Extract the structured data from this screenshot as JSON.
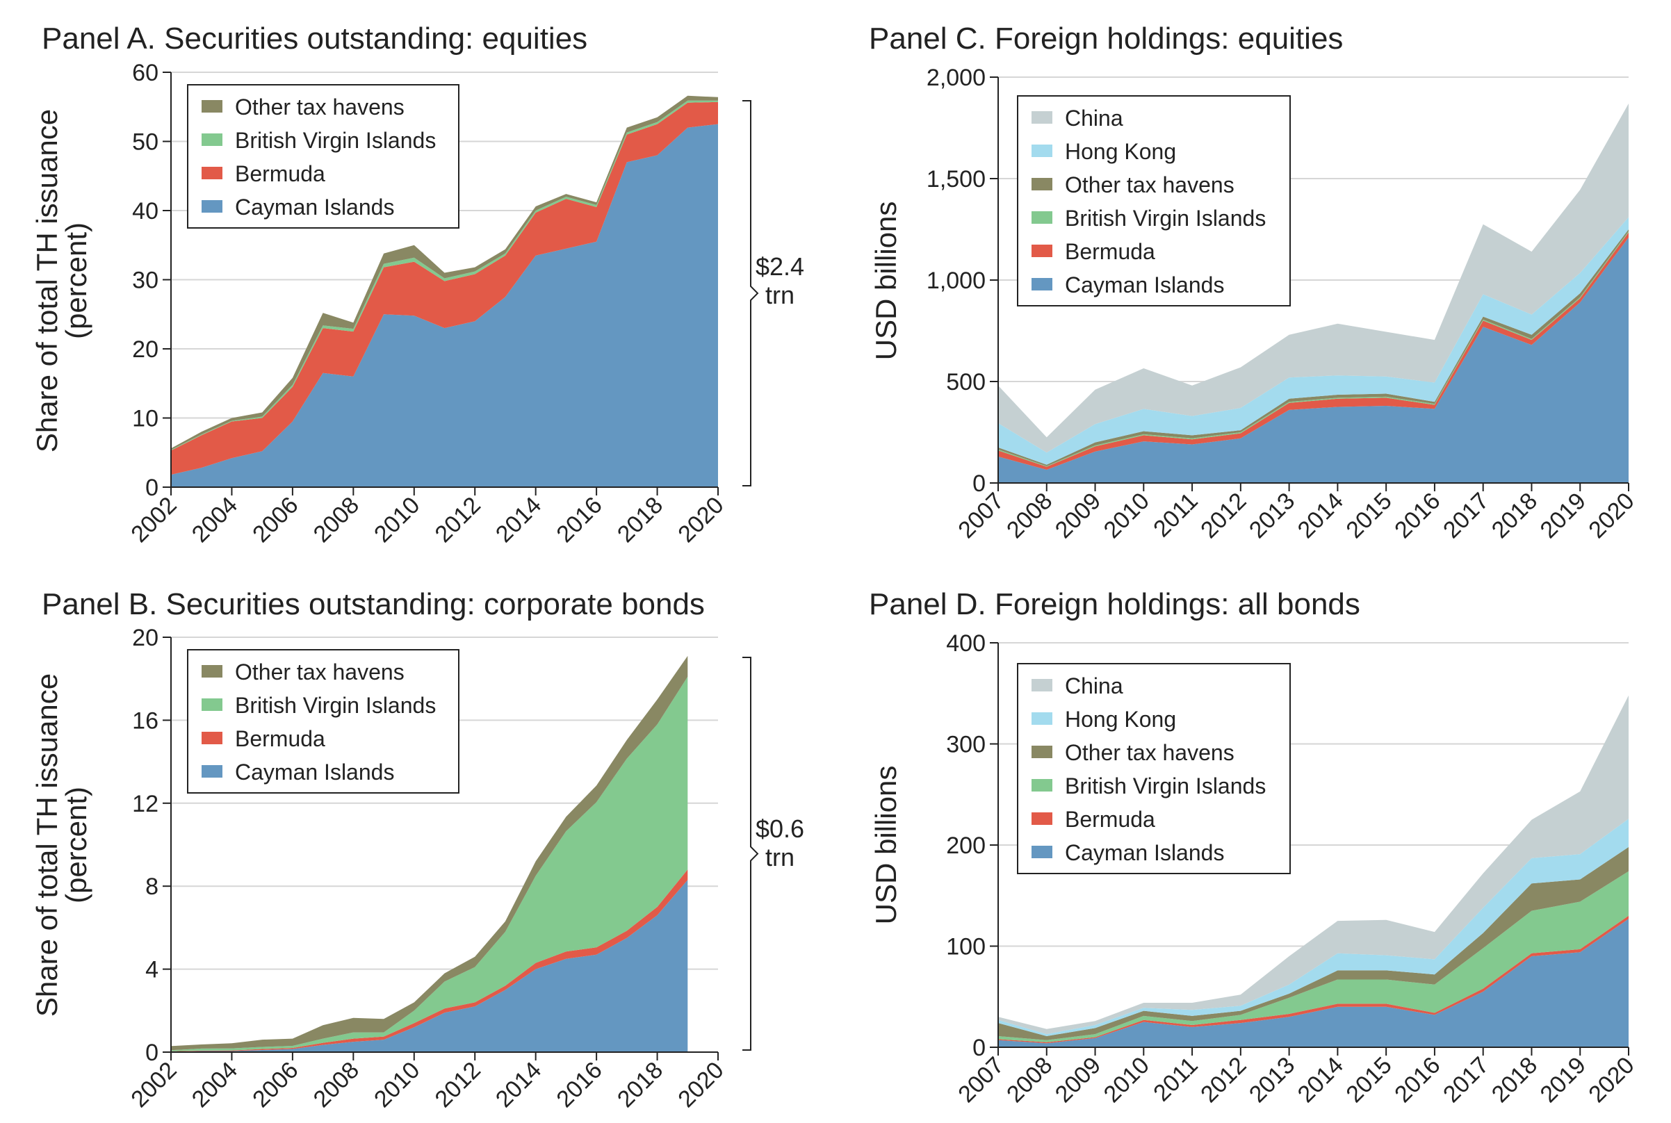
{
  "chart_data": [
    {
      "id": "A",
      "type": "area",
      "title": "Panel A. Securities outstanding: equities",
      "xlabel": "",
      "ylabel": [
        "Share of total TH issuance",
        "(percent)"
      ],
      "x": [
        2002,
        2003,
        2004,
        2005,
        2006,
        2007,
        2008,
        2009,
        2010,
        2011,
        2012,
        2013,
        2014,
        2015,
        2016,
        2017,
        2018,
        2019,
        2020
      ],
      "xticks": [
        "2002",
        "2004",
        "2006",
        "2008",
        "2010",
        "2012",
        "2014",
        "2016",
        "2018",
        "2020"
      ],
      "xlim": [
        2002,
        2020
      ],
      "ylim": [
        0,
        60
      ],
      "yticks": [
        "0",
        "10",
        "20",
        "30",
        "40",
        "50",
        "60"
      ],
      "grid": true,
      "legend_position": "top-left",
      "legend_order": [
        "Other tax havens",
        "British Virgin Islands",
        "Bermuda",
        "Cayman Islands"
      ],
      "series": [
        {
          "name": "Cayman Islands",
          "color": "#6497c1",
          "values": [
            1.8,
            2.8,
            4.2,
            5.2,
            9.5,
            16.5,
            16.0,
            25.0,
            24.8,
            23.0,
            24.0,
            27.5,
            33.5,
            34.5,
            35.5,
            47.0,
            48.0,
            52.0,
            52.5
          ]
        },
        {
          "name": "Bermuda",
          "color": "#e25a48",
          "values": [
            3.5,
            4.7,
            5.3,
            4.8,
            5.0,
            6.5,
            6.5,
            6.8,
            7.8,
            6.8,
            6.8,
            6.0,
            6.2,
            7.2,
            5.0,
            4.0,
            4.5,
            3.6,
            3.2
          ]
        },
        {
          "name": "British Virgin Islands",
          "color": "#83c98f",
          "values": [
            0.1,
            0.1,
            0.1,
            0.2,
            0.3,
            0.4,
            0.4,
            0.5,
            0.6,
            0.4,
            0.4,
            0.3,
            0.3,
            0.3,
            0.3,
            0.3,
            0.3,
            0.3,
            0.2
          ]
        },
        {
          "name": "Other tax havens",
          "color": "#898863",
          "values": [
            0.2,
            0.4,
            0.4,
            0.6,
            1.0,
            1.8,
            0.9,
            1.5,
            1.8,
            0.8,
            0.6,
            0.6,
            0.6,
            0.4,
            0.4,
            0.7,
            0.7,
            0.7,
            0.5
          ]
        }
      ],
      "annotation": [
        "$2.4",
        "trn"
      ]
    },
    {
      "id": "B",
      "type": "area",
      "title": "Panel B. Securities outstanding: corporate bonds",
      "xlabel": "",
      "ylabel": [
        "Share of total TH issuance",
        "(percent)"
      ],
      "x": [
        2002,
        2003,
        2004,
        2005,
        2006,
        2007,
        2008,
        2009,
        2010,
        2011,
        2012,
        2013,
        2014,
        2015,
        2016,
        2017,
        2018,
        2019
      ],
      "xticks": [
        "2002",
        "2004",
        "2006",
        "2008",
        "2010",
        "2012",
        "2014",
        "2016",
        "2018",
        "2020"
      ],
      "xlim": [
        2002,
        2020
      ],
      "ylim": [
        0,
        20
      ],
      "yticks": [
        "0",
        "4",
        "8",
        "12",
        "16",
        "20"
      ],
      "grid": true,
      "legend_position": "top-left",
      "legend_order": [
        "Other tax havens",
        "British Virgin Islands",
        "Bermuda",
        "Cayman Islands"
      ],
      "series": [
        {
          "name": "Cayman Islands",
          "color": "#6497c1",
          "values": [
            0.02,
            0.05,
            0.05,
            0.1,
            0.15,
            0.35,
            0.5,
            0.6,
            1.2,
            1.9,
            2.2,
            3.0,
            4.0,
            4.5,
            4.7,
            5.5,
            6.6,
            8.3
          ]
        },
        {
          "name": "Bermuda",
          "color": "#e25a48",
          "values": [
            0.02,
            0.02,
            0.03,
            0.05,
            0.05,
            0.1,
            0.15,
            0.15,
            0.2,
            0.2,
            0.2,
            0.2,
            0.3,
            0.35,
            0.35,
            0.35,
            0.4,
            0.5
          ]
        },
        {
          "name": "British Virgin Islands",
          "color": "#83c98f",
          "values": [
            0.05,
            0.1,
            0.1,
            0.1,
            0.1,
            0.2,
            0.3,
            0.2,
            0.6,
            1.3,
            1.7,
            2.6,
            4.2,
            5.8,
            7.0,
            8.3,
            8.8,
            9.3
          ]
        },
        {
          "name": "Other tax havens",
          "color": "#898863",
          "values": [
            0.2,
            0.2,
            0.25,
            0.35,
            0.35,
            0.65,
            0.7,
            0.65,
            0.4,
            0.4,
            0.5,
            0.5,
            0.7,
            0.7,
            0.8,
            0.9,
            1.2,
            1.0
          ]
        }
      ],
      "annotation": [
        "$0.6",
        "trn"
      ]
    },
    {
      "id": "C",
      "type": "area",
      "title": "Panel C. Foreign holdings: equities",
      "xlabel": "",
      "ylabel": [
        "USD billions"
      ],
      "x": [
        2007,
        2008,
        2009,
        2010,
        2011,
        2012,
        2013,
        2014,
        2015,
        2016,
        2017,
        2018,
        2019,
        2020
      ],
      "xticks": [
        "2007",
        "2008",
        "2009",
        "2010",
        "2011",
        "2012",
        "2013",
        "2014",
        "2015",
        "2016",
        "2017",
        "2018",
        "2019",
        "2020"
      ],
      "xlim": [
        2007,
        2020
      ],
      "ylim": [
        0,
        2000
      ],
      "yticks": [
        "0",
        "500",
        "1,000",
        "1,500",
        "2,000"
      ],
      "grid": true,
      "legend_position": "top-left",
      "legend_order": [
        "China",
        "Hong Kong",
        "Other tax havens",
        "British Virgin Islands",
        "Bermuda",
        "Cayman Islands"
      ],
      "series": [
        {
          "name": "Cayman Islands",
          "color": "#6497c1",
          "values": [
            130,
            65,
            155,
            205,
            190,
            220,
            360,
            375,
            380,
            365,
            770,
            680,
            890,
            1210
          ]
        },
        {
          "name": "Bermuda",
          "color": "#e25a48",
          "values": [
            30,
            15,
            25,
            30,
            25,
            25,
            35,
            40,
            40,
            20,
            30,
            25,
            20,
            25
          ]
        },
        {
          "name": "British Virgin Islands",
          "color": "#83c98f",
          "values": [
            5,
            3,
            5,
            5,
            5,
            5,
            5,
            5,
            5,
            5,
            5,
            5,
            5,
            5
          ]
        },
        {
          "name": "Other tax havens",
          "color": "#898863",
          "values": [
            10,
            7,
            15,
            15,
            15,
            10,
            15,
            15,
            15,
            10,
            15,
            20,
            20,
            10
          ]
        },
        {
          "name": "Hong Kong",
          "color": "#a3dbee",
          "values": [
            120,
            60,
            90,
            110,
            95,
            110,
            105,
            95,
            85,
            95,
            110,
            100,
            100,
            60
          ]
        },
        {
          "name": "China",
          "color": "#c5d0d2",
          "values": [
            185,
            75,
            170,
            200,
            150,
            200,
            210,
            255,
            220,
            210,
            345,
            310,
            410,
            560
          ]
        }
      ]
    },
    {
      "id": "D",
      "type": "area",
      "title": "Panel D. Foreign holdings: all bonds",
      "xlabel": "",
      "ylabel": [
        "USD billions"
      ],
      "x": [
        2007,
        2008,
        2009,
        2010,
        2011,
        2012,
        2013,
        2014,
        2015,
        2016,
        2017,
        2018,
        2019,
        2020
      ],
      "xticks": [
        "2007",
        "2008",
        "2009",
        "2010",
        "2011",
        "2012",
        "2013",
        "2014",
        "2015",
        "2016",
        "2017",
        "2018",
        "2019",
        "2020"
      ],
      "xlim": [
        2007,
        2020
      ],
      "ylim": [
        0,
        400
      ],
      "yticks": [
        "0",
        "100",
        "200",
        "300",
        "400"
      ],
      "grid": true,
      "legend_position": "top-left",
      "legend_order": [
        "China",
        "Hong Kong",
        "Other tax havens",
        "British Virgin Islands",
        "Bermuda",
        "Cayman Islands"
      ],
      "series": [
        {
          "name": "Cayman Islands",
          "color": "#6497c1",
          "values": [
            7,
            4,
            9,
            25,
            20,
            24,
            30,
            40,
            40,
            32,
            55,
            90,
            94,
            127
          ]
        },
        {
          "name": "Bermuda",
          "color": "#e25a48",
          "values": [
            1,
            1,
            1,
            2,
            2,
            3,
            3,
            3,
            3,
            2,
            3,
            3,
            3,
            3
          ]
        },
        {
          "name": "British Virgin Islands",
          "color": "#83c98f",
          "values": [
            3,
            2,
            3,
            4,
            4,
            5,
            16,
            24,
            24,
            28,
            40,
            42,
            47,
            44
          ]
        },
        {
          "name": "Other tax havens",
          "color": "#898863",
          "values": [
            13,
            4,
            6,
            5,
            5,
            4,
            4,
            9,
            9,
            10,
            15,
            27,
            22,
            24
          ]
        },
        {
          "name": "Hong Kong",
          "color": "#a3dbee",
          "values": [
            3,
            2,
            3,
            3,
            6,
            5,
            9,
            17,
            15,
            15,
            25,
            25,
            25,
            28
          ]
        },
        {
          "name": "China",
          "color": "#c5d0d2",
          "values": [
            3,
            5,
            4,
            5,
            7,
            11,
            28,
            32,
            35,
            27,
            34,
            38,
            62,
            122
          ]
        }
      ]
    }
  ]
}
